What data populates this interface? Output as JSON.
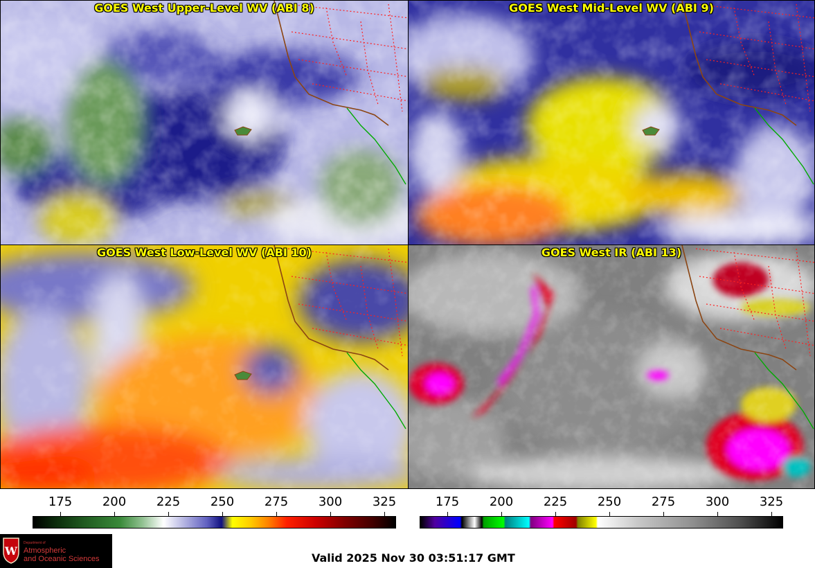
{
  "panels": [
    {
      "title": "GOES West Upper-Level WV (ABI 8)"
    },
    {
      "title": "GOES West Mid-Level WV (ABI 9)"
    },
    {
      "title": "GOES West Low-Level WV (ABI 10)"
    },
    {
      "title": "GOES West IR (ABI 13)"
    }
  ],
  "scales": {
    "wv_ticks": [
      "175",
      "200",
      "225",
      "250",
      "275",
      "300",
      "325"
    ],
    "ir_ticks": [
      "175",
      "200",
      "225",
      "250",
      "275",
      "300",
      "325"
    ]
  },
  "logo": {
    "dept_label": "Department of",
    "line1": "Atmospheric",
    "line2": "and Oceanic Sciences"
  },
  "valid_time": "Valid 2025 Nov 30 03:51:17 GMT",
  "colors": {
    "title_text": "#ffff00",
    "state_borders": "#ff2020",
    "coastline": "#8b4513",
    "mexico_border": "#00aa00",
    "logo_red": "#c5050c"
  }
}
